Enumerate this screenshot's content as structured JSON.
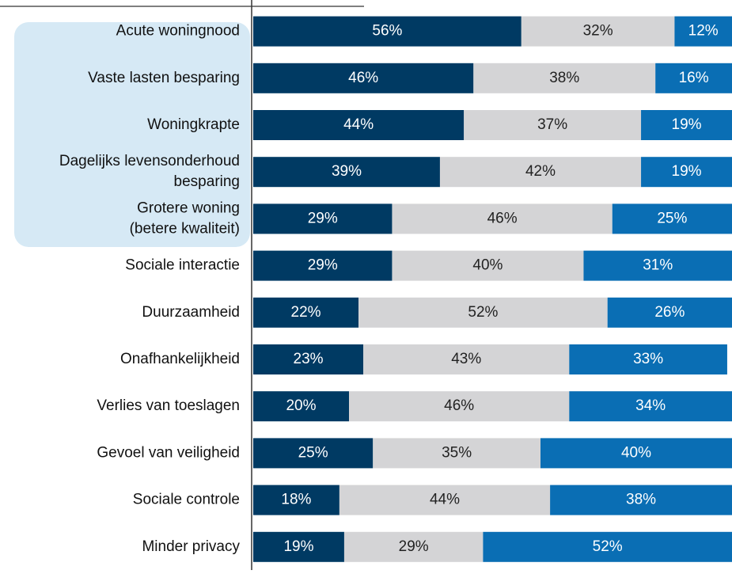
{
  "chart_data": {
    "type": "stacked-bar-horizontal",
    "categories": [
      "Acute woningnood",
      "Vaste lasten besparing",
      "Woningkrapte",
      [
        "Dagelijks levensonderhoud",
        "besparing"
      ],
      [
        "Grotere woning",
        "(betere kwaliteit)"
      ],
      "Sociale interactie",
      "Duurzaamheid",
      "Onafhankelijkheid",
      "Verlies van toeslagen",
      "Gevoel van veiligheid",
      "Sociale controle",
      "Minder privacy"
    ],
    "xlim": [
      0,
      100
    ],
    "series": [
      {
        "color": "#003a63",
        "values": [
          56,
          46,
          44,
          39,
          29,
          29,
          22,
          23,
          20,
          25,
          18,
          19
        ],
        "value_labels": [
          "56%",
          "46%",
          "44%",
          "39%",
          "29%",
          "29%",
          "22%",
          "23%",
          "20%",
          "25%",
          "18%",
          "19%"
        ]
      },
      {
        "color": "#d4d4d6",
        "values": [
          32,
          38,
          37,
          42,
          46,
          40,
          52,
          43,
          46,
          35,
          44,
          29
        ],
        "value_labels": [
          "32%",
          "38%",
          "37%",
          "42%",
          "46%",
          "40%",
          "52%",
          "43%",
          "46%",
          "35%",
          "44%",
          "29%"
        ]
      },
      {
        "color": "#0a6eb4",
        "values": [
          12,
          16,
          19,
          19,
          25,
          31,
          26,
          33,
          34,
          40,
          38,
          52
        ],
        "value_labels": [
          "12%",
          "16%",
          "19%",
          "19%",
          "25%",
          "31%",
          "26%",
          "33%",
          "34%",
          "40%",
          "38%",
          "52%"
        ]
      }
    ]
  }
}
